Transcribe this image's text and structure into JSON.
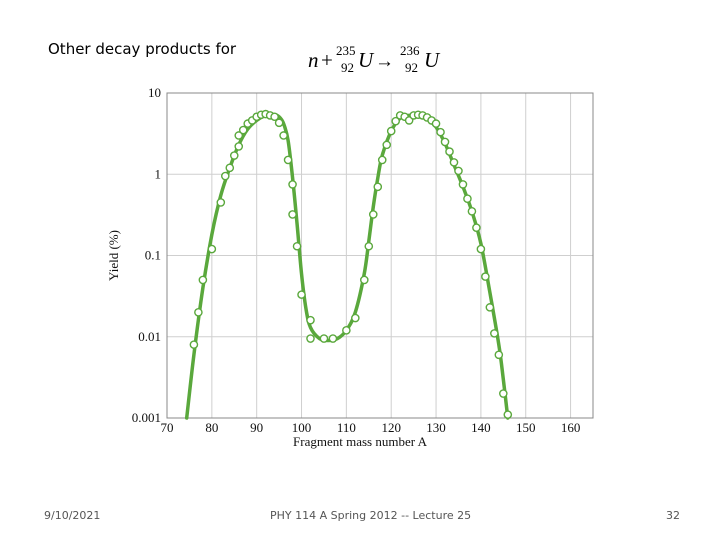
{
  "slide": {
    "heading": "Other decay products for",
    "equation": {
      "n": "n",
      "plus": "+",
      "u1_mass": "235",
      "u1_atomic": "92",
      "u1_symbol": "U",
      "arrow": "→",
      "u2_mass": "236",
      "u2_atomic": "92",
      "u2_symbol": "U"
    },
    "footer": {
      "date": "9/10/2021",
      "course": "PHY 114 A  Spring 2012 -- Lecture 25",
      "page": "32"
    }
  },
  "colors": {
    "curve": "#5aa83c",
    "marker_edge": "#5aa83c",
    "marker_fill": "#ffffff",
    "grid": "#cfcfcf"
  },
  "chart_data": {
    "type": "scatter",
    "title": "",
    "xlabel": "Fragment mass number A",
    "ylabel": "Yield (%)",
    "xlim": [
      70,
      165
    ],
    "ylim": [
      0.001,
      10
    ],
    "y_scale": "log",
    "grid": true,
    "x_ticks": [
      70,
      80,
      90,
      100,
      110,
      120,
      130,
      140,
      150,
      160
    ],
    "y_ticks": [
      0.001,
      0.01,
      0.1,
      1,
      10
    ],
    "y_tick_labels": [
      "0.001",
      "0.01",
      "0.1",
      "1",
      "10"
    ],
    "points": [
      [
        76,
        0.008
      ],
      [
        77,
        0.02
      ],
      [
        78,
        0.05
      ],
      [
        80,
        0.12
      ],
      [
        82,
        0.45
      ],
      [
        83,
        0.95
      ],
      [
        84,
        1.2
      ],
      [
        85,
        1.7
      ],
      [
        86,
        2.2
      ],
      [
        86,
        3.0
      ],
      [
        87,
        3.5
      ],
      [
        88,
        4.2
      ],
      [
        89,
        4.6
      ],
      [
        90,
        5.1
      ],
      [
        91,
        5.4
      ],
      [
        92,
        5.5
      ],
      [
        93,
        5.3
      ],
      [
        94,
        5.1
      ],
      [
        95,
        4.3
      ],
      [
        96,
        3.0
      ],
      [
        97,
        1.5
      ],
      [
        98,
        0.75
      ],
      [
        98,
        0.32
      ],
      [
        99,
        0.13
      ],
      [
        100,
        0.033
      ],
      [
        102,
        0.016
      ],
      [
        102,
        0.0095
      ],
      [
        105,
        0.0095
      ],
      [
        107,
        0.0095
      ],
      [
        110,
        0.012
      ],
      [
        112,
        0.017
      ],
      [
        114,
        0.05
      ],
      [
        115,
        0.13
      ],
      [
        116,
        0.32
      ],
      [
        117,
        0.7
      ],
      [
        118,
        1.5
      ],
      [
        119,
        2.3
      ],
      [
        120,
        3.4
      ],
      [
        121,
        4.5
      ],
      [
        122,
        5.3
      ],
      [
        123,
        5.1
      ],
      [
        124,
        4.6
      ],
      [
        125,
        5.3
      ],
      [
        126,
        5.4
      ],
      [
        127,
        5.3
      ],
      [
        128,
        5.0
      ],
      [
        129,
        4.6
      ],
      [
        130,
        4.2
      ],
      [
        131,
        3.3
      ],
      [
        132,
        2.5
      ],
      [
        133,
        1.9
      ],
      [
        134,
        1.4
      ],
      [
        135,
        1.1
      ],
      [
        136,
        0.75
      ],
      [
        137,
        0.5
      ],
      [
        138,
        0.35
      ],
      [
        139,
        0.22
      ],
      [
        140,
        0.12
      ],
      [
        141,
        0.055
      ],
      [
        142,
        0.023
      ],
      [
        143,
        0.011
      ],
      [
        144,
        0.006
      ],
      [
        145,
        0.002
      ],
      [
        146,
        0.0011
      ]
    ],
    "curve": [
      [
        74.4,
        0.001
      ],
      [
        76,
        0.006
      ],
      [
        78,
        0.04
      ],
      [
        80,
        0.18
      ],
      [
        82,
        0.55
      ],
      [
        84,
        1.2
      ],
      [
        86,
        2.3
      ],
      [
        88,
        3.6
      ],
      [
        90,
        4.6
      ],
      [
        92,
        5.3
      ],
      [
        94,
        5.4
      ],
      [
        95,
        5.1
      ],
      [
        96,
        4.2
      ],
      [
        97,
        2.6
      ],
      [
        98,
        0.9
      ],
      [
        99,
        0.25
      ],
      [
        100,
        0.06
      ],
      [
        101,
        0.022
      ],
      [
        102,
        0.013
      ],
      [
        104,
        0.0095
      ],
      [
        106,
        0.009
      ],
      [
        108,
        0.0095
      ],
      [
        110,
        0.012
      ],
      [
        112,
        0.02
      ],
      [
        114,
        0.06
      ],
      [
        115,
        0.15
      ],
      [
        116,
        0.4
      ],
      [
        117,
        0.9
      ],
      [
        118,
        1.7
      ],
      [
        120,
        3.4
      ],
      [
        122,
        4.9
      ],
      [
        124,
        5.3
      ],
      [
        126,
        5.3
      ],
      [
        128,
        4.8
      ],
      [
        130,
        3.8
      ],
      [
        132,
        2.4
      ],
      [
        134,
        1.3
      ],
      [
        136,
        0.7
      ],
      [
        138,
        0.35
      ],
      [
        140,
        0.14
      ],
      [
        142,
        0.035
      ],
      [
        144,
        0.008
      ],
      [
        145,
        0.003
      ],
      [
        146,
        0.001
      ]
    ]
  }
}
